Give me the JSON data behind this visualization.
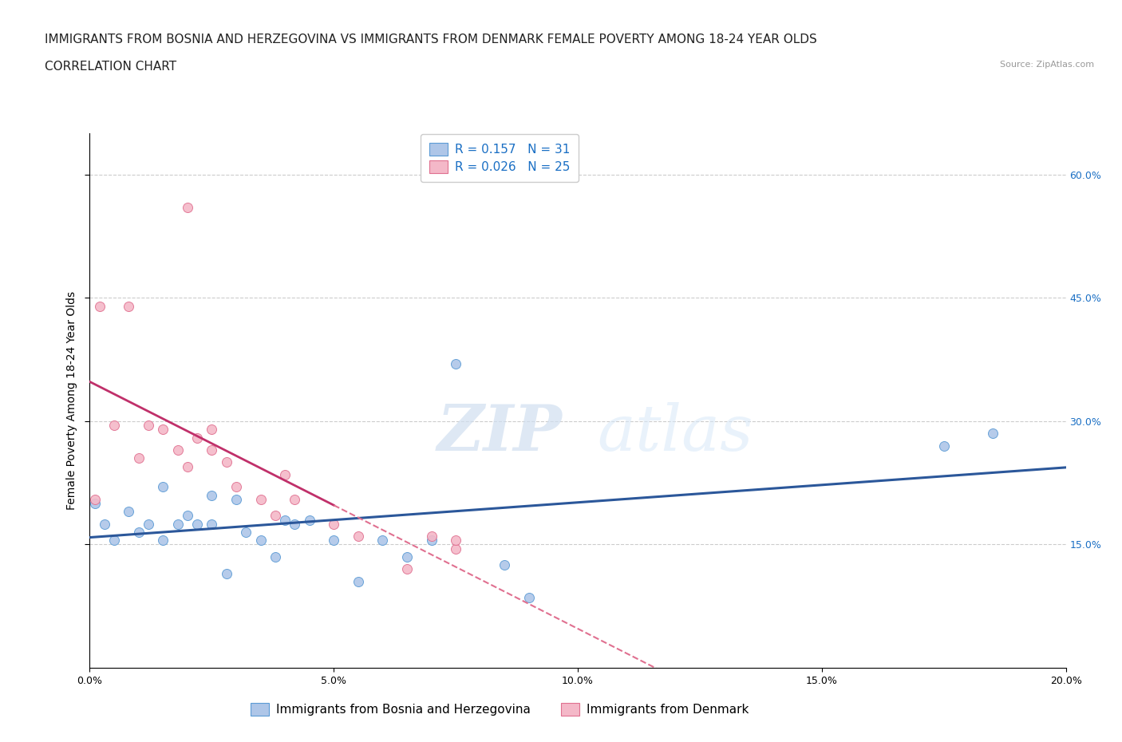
{
  "title_line1": "IMMIGRANTS FROM BOSNIA AND HERZEGOVINA VS IMMIGRANTS FROM DENMARK FEMALE POVERTY AMONG 18-24 YEAR OLDS",
  "title_line2": "CORRELATION CHART",
  "source_text": "Source: ZipAtlas.com",
  "ylabel": "Female Poverty Among 18-24 Year Olds",
  "xlim": [
    0.0,
    0.2
  ],
  "ylim": [
    0.0,
    0.65
  ],
  "xtick_labels": [
    "0.0%",
    "5.0%",
    "10.0%",
    "15.0%",
    "20.0%"
  ],
  "xtick_values": [
    0.0,
    0.05,
    0.1,
    0.15,
    0.2
  ],
  "ytick_labels": [
    "15.0%",
    "30.0%",
    "45.0%",
    "60.0%"
  ],
  "ytick_values": [
    0.15,
    0.3,
    0.45,
    0.6
  ],
  "bosnia_color": "#aec6e8",
  "bosnia_edge_color": "#5b9bd5",
  "denmark_color": "#f4b8c8",
  "denmark_edge_color": "#e07090",
  "bosnia_R": 0.157,
  "bosnia_N": 31,
  "denmark_R": 0.026,
  "denmark_N": 25,
  "bosnia_label": "Immigrants from Bosnia and Herzegovina",
  "denmark_label": "Immigrants from Denmark",
  "legend_R_color": "#1a6fc4",
  "watermark_zip": "ZIP",
  "watermark_atlas": "atlas",
  "bosnia_x": [
    0.001,
    0.003,
    0.005,
    0.008,
    0.01,
    0.012,
    0.015,
    0.015,
    0.018,
    0.02,
    0.022,
    0.025,
    0.025,
    0.028,
    0.03,
    0.032,
    0.035,
    0.038,
    0.04,
    0.042,
    0.045,
    0.05,
    0.055,
    0.06,
    0.065,
    0.07,
    0.075,
    0.085,
    0.09,
    0.175,
    0.185
  ],
  "bosnia_y": [
    0.2,
    0.175,
    0.155,
    0.19,
    0.165,
    0.175,
    0.155,
    0.22,
    0.175,
    0.185,
    0.175,
    0.175,
    0.21,
    0.115,
    0.205,
    0.165,
    0.155,
    0.135,
    0.18,
    0.175,
    0.18,
    0.155,
    0.105,
    0.155,
    0.135,
    0.155,
    0.37,
    0.125,
    0.085,
    0.27,
    0.285
  ],
  "denmark_x": [
    0.001,
    0.002,
    0.005,
    0.008,
    0.01,
    0.012,
    0.015,
    0.018,
    0.02,
    0.022,
    0.025,
    0.025,
    0.028,
    0.03,
    0.035,
    0.038,
    0.04,
    0.042,
    0.05,
    0.055,
    0.065,
    0.07,
    0.075,
    0.075,
    0.02
  ],
  "denmark_y": [
    0.205,
    0.44,
    0.295,
    0.44,
    0.255,
    0.295,
    0.29,
    0.265,
    0.245,
    0.28,
    0.265,
    0.29,
    0.25,
    0.22,
    0.205,
    0.185,
    0.235,
    0.205,
    0.175,
    0.16,
    0.12,
    0.16,
    0.145,
    0.155,
    0.56
  ],
  "bosnia_trendline_color": "#2b579a",
  "denmark_trendline_color": "#c0306a",
  "denmark_trendline_dashed_color": "#e07090",
  "grid_color": "#cccccc",
  "bg_color": "#ffffff",
  "title_fontsize": 11,
  "axis_label_fontsize": 10,
  "tick_fontsize": 9,
  "legend_fontsize": 11,
  "marker_size": 75
}
